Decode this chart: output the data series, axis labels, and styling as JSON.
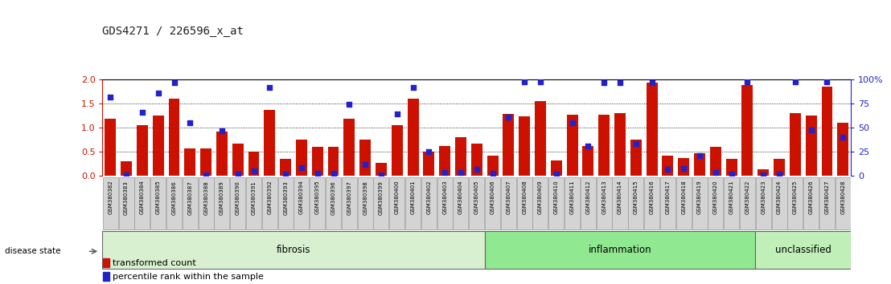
{
  "title": "GDS4271 / 226596_x_at",
  "samples": [
    "GSM380382",
    "GSM380383",
    "GSM380384",
    "GSM380385",
    "GSM380386",
    "GSM380387",
    "GSM380388",
    "GSM380389",
    "GSM380390",
    "GSM380391",
    "GSM380392",
    "GSM380393",
    "GSM380394",
    "GSM380395",
    "GSM380396",
    "GSM380397",
    "GSM380398",
    "GSM380399",
    "GSM380400",
    "GSM380401",
    "GSM380402",
    "GSM380403",
    "GSM380404",
    "GSM380405",
    "GSM380406",
    "GSM380407",
    "GSM380408",
    "GSM380409",
    "GSM380410",
    "GSM380411",
    "GSM380412",
    "GSM380413",
    "GSM380414",
    "GSM380415",
    "GSM380416",
    "GSM380417",
    "GSM380418",
    "GSM380419",
    "GSM380420",
    "GSM380421",
    "GSM380422",
    "GSM380423",
    "GSM380424",
    "GSM380425",
    "GSM380426",
    "GSM380427",
    "GSM380428"
  ],
  "transformed_count": [
    1.18,
    0.3,
    1.05,
    1.25,
    1.6,
    0.57,
    0.57,
    0.93,
    0.67,
    0.51,
    1.37,
    0.36,
    0.75,
    0.6,
    0.6,
    1.18,
    0.75,
    0.27,
    1.05,
    1.6,
    0.5,
    0.62,
    0.8,
    0.68,
    0.43,
    1.28,
    1.23,
    1.55,
    0.32,
    1.27,
    0.63,
    1.27,
    1.3,
    0.75,
    1.93,
    0.43,
    0.37,
    0.47,
    0.6,
    0.35,
    1.88,
    0.14,
    0.35,
    1.3,
    1.25,
    1.85,
    1.1
  ],
  "percentile_rank_pct": [
    82,
    1,
    66,
    86,
    97,
    55,
    1,
    47,
    2,
    5,
    92,
    2,
    9,
    3,
    3,
    74,
    12,
    1,
    64,
    92,
    25,
    4,
    4,
    7,
    3,
    61,
    98,
    98,
    2,
    55,
    31,
    97,
    97,
    34,
    97,
    7,
    8,
    21,
    4,
    2,
    98,
    1,
    2,
    98,
    48,
    98,
    40
  ],
  "groups": [
    {
      "name": "fibrosis",
      "start": 0,
      "end": 24,
      "color": "#d8f0d0"
    },
    {
      "name": "inflammation",
      "start": 24,
      "end": 41,
      "color": "#90e890"
    },
    {
      "name": "unclassified",
      "start": 41,
      "end": 47,
      "color": "#c0f0b8"
    }
  ],
  "bar_color": "#cc1100",
  "dot_color": "#2222cc",
  "ylim_left": [
    0,
    2.0
  ],
  "ylim_right": [
    0,
    100
  ],
  "yticks_left": [
    0,
    0.5,
    1.0,
    1.5,
    2.0
  ],
  "yticks_right": [
    0,
    25,
    50,
    75,
    100
  ],
  "left_axis_color": "#cc1100",
  "right_axis_color": "#2222cc",
  "plot_bg": "#ffffff",
  "tick_bg": "#d0d0d0",
  "fig_bg": "#ffffff"
}
